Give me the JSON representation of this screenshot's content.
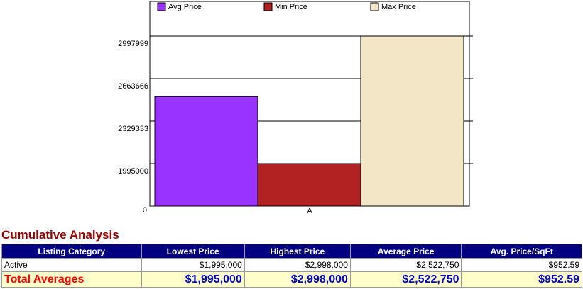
{
  "chart_data": {
    "type": "bar",
    "categories": [
      "A"
    ],
    "series": [
      {
        "name": "Avg Price",
        "color": "#9933ff",
        "values": [
          2522750
        ]
      },
      {
        "name": "Min Price",
        "color": "#b22222",
        "values": [
          1995000
        ]
      },
      {
        "name": "Max Price",
        "color": "#f3e6c6",
        "values": [
          2998000
        ]
      }
    ],
    "ylim": [
      1660667,
      3271000
    ],
    "yticks": [
      1995000,
      2329333,
      2663666,
      2997999
    ],
    "y_origin_label": "0",
    "grid": true,
    "legend": "top"
  },
  "table": {
    "title": "Cumulative Analysis",
    "columns": [
      "Listing Category",
      "Lowest Price",
      "Highest Price",
      "Average Price",
      "Avg. Price/SqFt"
    ],
    "rows": [
      [
        "Active",
        "$1,995,000",
        "$2,998,000",
        "$2,522,750",
        "$952.59"
      ]
    ],
    "totals": [
      "Total Averages",
      "$1,995,000",
      "$2,998,000",
      "$2,522,750",
      "$952.59"
    ]
  }
}
